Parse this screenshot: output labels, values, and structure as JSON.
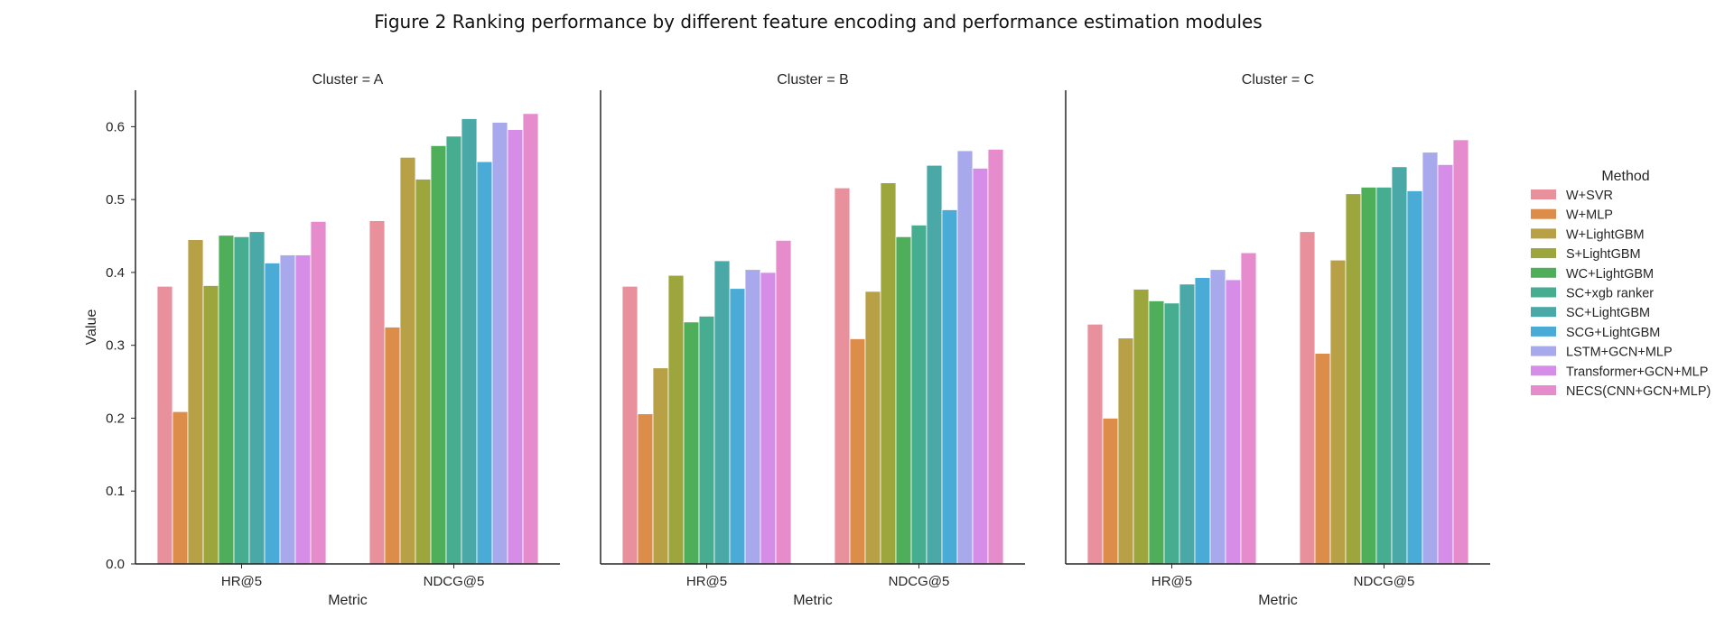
{
  "figure": {
    "title": "Figure 2 Ranking performance by different feature encoding and performance estimation modules"
  },
  "chart_data": {
    "type": "bar",
    "layout": "facet-columns",
    "facet_variable": "Cluster",
    "ylabel": "Value",
    "xlabel": "Metric",
    "ylim": [
      0,
      0.65
    ],
    "yticks": [
      0.0,
      0.1,
      0.2,
      0.3,
      0.4,
      0.5,
      0.6
    ],
    "categories": [
      "HR@5",
      "NDCG@5"
    ],
    "grid": false,
    "legend": {
      "title": "Method",
      "placement": "right",
      "entries": [
        "W+SVR",
        "W+MLP",
        "W+LightGBM",
        "S+LightGBM",
        "WC+LightGBM",
        "SC+xgb ranker",
        "SC+LightGBM",
        "SCG+LightGBM",
        "LSTM+GCN+MLP",
        "Transformer+GCN+MLP",
        "NECS(CNN+GCN+MLP)"
      ]
    },
    "colors": [
      "#e8919c",
      "#dc8d4a",
      "#b7a045",
      "#9ca63d",
      "#4fae5a",
      "#47ad90",
      "#4aa9a6",
      "#4aacd6",
      "#a8a9ec",
      "#d68de8",
      "#e68bcb"
    ],
    "panels": [
      {
        "title": "Cluster = A",
        "series": [
          {
            "name": "W+SVR",
            "values": [
              0.381,
              0.471
            ]
          },
          {
            "name": "W+MLP",
            "values": [
              0.209,
              0.325
            ]
          },
          {
            "name": "W+LightGBM",
            "values": [
              0.445,
              0.558
            ]
          },
          {
            "name": "S+LightGBM",
            "values": [
              0.382,
              0.528
            ]
          },
          {
            "name": "WC+LightGBM",
            "values": [
              0.451,
              0.574
            ]
          },
          {
            "name": "SC+xgb ranker",
            "values": [
              0.449,
              0.587
            ]
          },
          {
            "name": "SC+LightGBM",
            "values": [
              0.456,
              0.611
            ]
          },
          {
            "name": "SCG+LightGBM",
            "values": [
              0.413,
              0.552
            ]
          },
          {
            "name": "LSTM+GCN+MLP",
            "values": [
              0.424,
              0.606
            ]
          },
          {
            "name": "Transformer+GCN+MLP",
            "values": [
              0.424,
              0.596
            ]
          },
          {
            "name": "NECS(CNN+GCN+MLP)",
            "values": [
              0.47,
              0.618
            ]
          }
        ]
      },
      {
        "title": "Cluster = B",
        "series": [
          {
            "name": "W+SVR",
            "values": [
              0.381,
              0.516
            ]
          },
          {
            "name": "W+MLP",
            "values": [
              0.206,
              0.309
            ]
          },
          {
            "name": "W+LightGBM",
            "values": [
              0.269,
              0.374
            ]
          },
          {
            "name": "S+LightGBM",
            "values": [
              0.396,
              0.523
            ]
          },
          {
            "name": "WC+LightGBM",
            "values": [
              0.332,
              0.449
            ]
          },
          {
            "name": "SC+xgb ranker",
            "values": [
              0.34,
              0.465
            ]
          },
          {
            "name": "SC+LightGBM",
            "values": [
              0.416,
              0.547
            ]
          },
          {
            "name": "SCG+LightGBM",
            "values": [
              0.378,
              0.486
            ]
          },
          {
            "name": "LSTM+GCN+MLP",
            "values": [
              0.404,
              0.567
            ]
          },
          {
            "name": "Transformer+GCN+MLP",
            "values": [
              0.4,
              0.543
            ]
          },
          {
            "name": "NECS(CNN+GCN+MLP)",
            "values": [
              0.444,
              0.569
            ]
          }
        ]
      },
      {
        "title": "Cluster = C",
        "series": [
          {
            "name": "W+SVR",
            "values": [
              0.329,
              0.456
            ]
          },
          {
            "name": "W+MLP",
            "values": [
              0.2,
              0.289
            ]
          },
          {
            "name": "W+LightGBM",
            "values": [
              0.31,
              0.417
            ]
          },
          {
            "name": "S+LightGBM",
            "values": [
              0.377,
              0.508
            ]
          },
          {
            "name": "WC+LightGBM",
            "values": [
              0.361,
              0.517
            ]
          },
          {
            "name": "SC+xgb ranker",
            "values": [
              0.358,
              0.517
            ]
          },
          {
            "name": "SC+LightGBM",
            "values": [
              0.384,
              0.545
            ]
          },
          {
            "name": "SCG+LightGBM",
            "values": [
              0.393,
              0.512
            ]
          },
          {
            "name": "LSTM+GCN+MLP",
            "values": [
              0.404,
              0.565
            ]
          },
          {
            "name": "Transformer+GCN+MLP",
            "values": [
              0.39,
              0.548
            ]
          },
          {
            "name": "NECS(CNN+GCN+MLP)",
            "values": [
              0.427,
              0.582
            ]
          }
        ]
      }
    ]
  }
}
